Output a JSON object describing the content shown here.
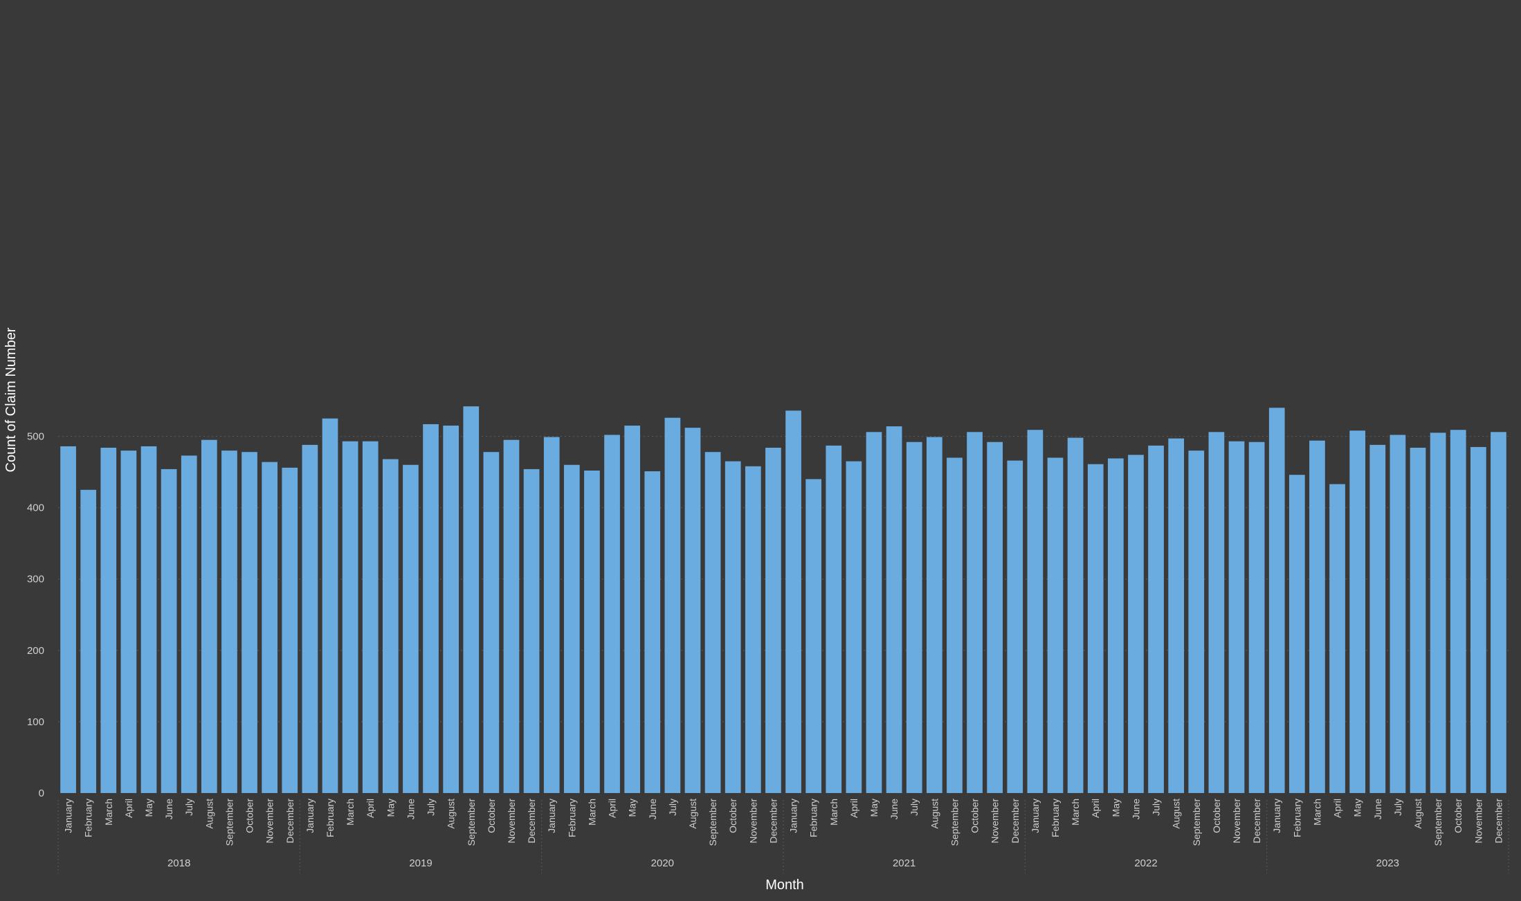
{
  "colors": {
    "background": "#393939",
    "bar": "#6aabe0",
    "tick_text": "#d0d0d0",
    "axis_title_text": "#ffffff",
    "gridline": "#5a5a5a",
    "separator": "#5a5a5a"
  },
  "chart_data": {
    "type": "bar",
    "title": "",
    "xlabel": "Month",
    "ylabel": "Count of Claim Number",
    "ylim": [
      0,
      540
    ],
    "yticks": [
      0,
      100,
      200,
      300,
      400,
      500
    ],
    "grid": "horizontal dotted",
    "legend": "none",
    "years": [
      {
        "label": "2018",
        "months": [
          "January",
          "February",
          "March",
          "April",
          "May",
          "June",
          "July",
          "August",
          "September",
          "October",
          "November",
          "December"
        ],
        "values": [
          486,
          425,
          484,
          480,
          486,
          454,
          473,
          495,
          480,
          478,
          464,
          456
        ]
      },
      {
        "label": "2019",
        "months": [
          "January",
          "February",
          "March",
          "April",
          "May",
          "June",
          "July",
          "August",
          "September",
          "October",
          "November",
          "December"
        ],
        "values": [
          488,
          525,
          493,
          493,
          468,
          460,
          517,
          515,
          542,
          478,
          495,
          454
        ]
      },
      {
        "label": "2020",
        "months": [
          "January",
          "February",
          "March",
          "April",
          "May",
          "June",
          "July",
          "August",
          "September",
          "October",
          "November",
          "December"
        ],
        "values": [
          499,
          460,
          452,
          502,
          515,
          451,
          526,
          512,
          478,
          465,
          458,
          484
        ]
      },
      {
        "label": "2021",
        "months": [
          "January",
          "February",
          "March",
          "April",
          "May",
          "June",
          "July",
          "August",
          "September",
          "October",
          "November",
          "December"
        ],
        "values": [
          536,
          440,
          487,
          465,
          506,
          514,
          492,
          499,
          470,
          506,
          492,
          466
        ]
      },
      {
        "label": "2022",
        "months": [
          "January",
          "February",
          "March",
          "April",
          "May",
          "June",
          "July",
          "August",
          "September",
          "October",
          "November",
          "December"
        ],
        "values": [
          509,
          470,
          498,
          461,
          469,
          474,
          487,
          497,
          480,
          506,
          493,
          492
        ]
      },
      {
        "label": "2023",
        "months": [
          "January",
          "February",
          "March",
          "April",
          "May",
          "June",
          "July",
          "August",
          "September",
          "October",
          "November",
          "December"
        ],
        "values": [
          540,
          446,
          494,
          433,
          508,
          488,
          502,
          484,
          505,
          509,
          485,
          506
        ]
      }
    ]
  }
}
